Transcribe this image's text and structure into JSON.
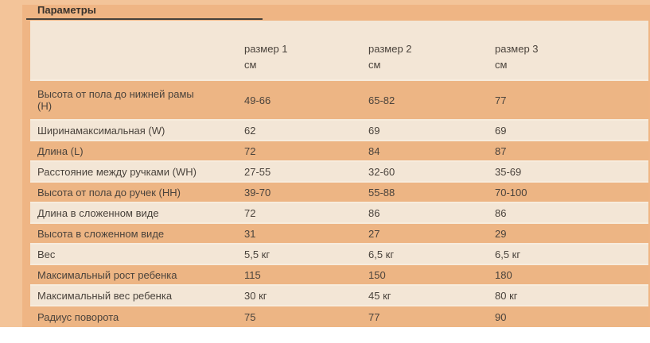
{
  "title": "Параметры",
  "table": {
    "columns": [
      {
        "label": "размер 1",
        "unit": "см"
      },
      {
        "label": "размер 2",
        "unit": "см"
      },
      {
        "label": "размер 3",
        "unit": "см"
      }
    ],
    "rows": [
      {
        "label": "Высота от пола до нижней рамы (H)",
        "values": [
          "49-66",
          "65-82",
          "77"
        ]
      },
      {
        "label": "Ширинамаксимальная (W)",
        "values": [
          "62",
          "69",
          "69"
        ]
      },
      {
        "label": "Длина (L)",
        "values": [
          "72",
          "84",
          "87"
        ]
      },
      {
        "label": "Расстояние между ручками (WH)",
        "values": [
          "27-55",
          "32-60",
          "35-69"
        ]
      },
      {
        "label": "Высота от пола до ручек (HH)",
        "values": [
          "39-70",
          "55-88",
          "70-100"
        ]
      },
      {
        "label": "Длина в сложенном виде",
        "values": [
          "72",
          "86",
          "86"
        ]
      },
      {
        "label": "Высота в сложенном виде",
        "values": [
          "31",
          "27",
          "29"
        ]
      },
      {
        "label": "Вес",
        "values": [
          "5,5 кг",
          "6,5 кг",
          "6,5 кг"
        ]
      },
      {
        "label": "Максимальный рост ребенка",
        "values": [
          "115",
          "150",
          "180"
        ]
      },
      {
        "label": "Максимальный вес ребенка",
        "values": [
          "30 кг",
          "45 кг",
          "80 кг"
        ]
      },
      {
        "label": "Радиус поворота",
        "values": [
          "75",
          "77",
          "90"
        ]
      }
    ]
  },
  "colors": {
    "page_background": "#efb584",
    "margin_strip": "#f3c499",
    "row_light": "#f3e6d6",
    "row_dark": "#edb584",
    "row_separator": "#f7ecdd",
    "text": "#4a433c",
    "title_text": "#38322c",
    "title_underline": "#46413b",
    "footer_area": "#ffffff"
  }
}
